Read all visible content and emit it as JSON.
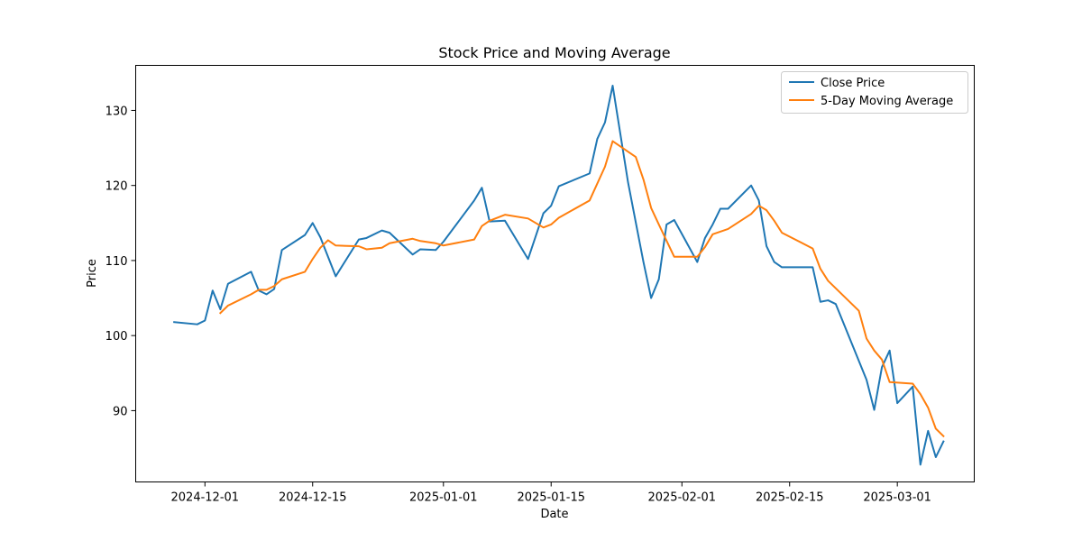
{
  "chart_data": {
    "type": "line",
    "title": "Stock Price and Moving Average",
    "xlabel": "Date",
    "ylabel": "Price",
    "xlim": [
      "2024-11-22",
      "2025-03-11"
    ],
    "ylim": [
      80.5,
      136.0
    ],
    "x_ticks": [
      "2024-12-01",
      "2024-12-15",
      "2025-01-01",
      "2025-01-15",
      "2025-02-01",
      "2025-02-15",
      "2025-03-01"
    ],
    "y_ticks": [
      90,
      100,
      110,
      120,
      130
    ],
    "grid": false,
    "legend_position": "top-right",
    "series": [
      {
        "name": "Close Price",
        "color": "#1f77b4",
        "points": [
          [
            "2024-11-27",
            101.8
          ],
          [
            "2024-11-30",
            101.5
          ],
          [
            "2024-12-01",
            102.0
          ],
          [
            "2024-12-02",
            106.0
          ],
          [
            "2024-12-03",
            103.5
          ],
          [
            "2024-12-04",
            106.9
          ],
          [
            "2024-12-07",
            108.5
          ],
          [
            "2024-12-08",
            106.0
          ],
          [
            "2024-12-09",
            105.5
          ],
          [
            "2024-12-10",
            106.2
          ],
          [
            "2024-12-11",
            111.4
          ],
          [
            "2024-12-14",
            113.4
          ],
          [
            "2024-12-15",
            115.0
          ],
          [
            "2024-12-16",
            113.1
          ],
          [
            "2024-12-18",
            107.9
          ],
          [
            "2024-12-21",
            112.8
          ],
          [
            "2024-12-22",
            113.0
          ],
          [
            "2024-12-24",
            114.0
          ],
          [
            "2024-12-25",
            113.7
          ],
          [
            "2024-12-28",
            110.8
          ],
          [
            "2024-12-29",
            111.5
          ],
          [
            "2024-12-31",
            111.4
          ],
          [
            "2025-01-01",
            112.5
          ],
          [
            "2025-01-05",
            118.0
          ],
          [
            "2025-01-06",
            119.7
          ],
          [
            "2025-01-07",
            115.2
          ],
          [
            "2025-01-09",
            115.3
          ],
          [
            "2025-01-12",
            110.2
          ],
          [
            "2025-01-14",
            116.3
          ],
          [
            "2025-01-15",
            117.3
          ],
          [
            "2025-01-16",
            119.9
          ],
          [
            "2025-01-20",
            121.6
          ],
          [
            "2025-01-21",
            126.2
          ],
          [
            "2025-01-22",
            128.4
          ],
          [
            "2025-01-23",
            133.3
          ],
          [
            "2025-01-25",
            120.4
          ],
          [
            "2025-01-27",
            109.8
          ],
          [
            "2025-01-28",
            105.0
          ],
          [
            "2025-01-29",
            107.5
          ],
          [
            "2025-01-30",
            114.8
          ],
          [
            "2025-01-31",
            115.4
          ],
          [
            "2025-02-03",
            109.8
          ],
          [
            "2025-02-04",
            113.0
          ],
          [
            "2025-02-05",
            114.8
          ],
          [
            "2025-02-06",
            116.9
          ],
          [
            "2025-02-07",
            116.9
          ],
          [
            "2025-02-10",
            120.0
          ],
          [
            "2025-02-11",
            118.0
          ],
          [
            "2025-02-12",
            111.9
          ],
          [
            "2025-02-13",
            109.8
          ],
          [
            "2025-02-14",
            109.1
          ],
          [
            "2025-02-17",
            109.1
          ],
          [
            "2025-02-18",
            109.1
          ],
          [
            "2025-02-19",
            104.5
          ],
          [
            "2025-02-20",
            104.7
          ],
          [
            "2025-02-21",
            104.2
          ],
          [
            "2025-02-25",
            94.1
          ],
          [
            "2025-02-26",
            90.1
          ],
          [
            "2025-02-27",
            95.8
          ],
          [
            "2025-02-28",
            98.0
          ],
          [
            "2025-03-01",
            91.0
          ],
          [
            "2025-03-03",
            93.2
          ],
          [
            "2025-03-04",
            82.8
          ],
          [
            "2025-03-05",
            87.3
          ],
          [
            "2025-03-06",
            83.8
          ],
          [
            "2025-03-07",
            85.9
          ]
        ]
      },
      {
        "name": "5-Day Moving Average",
        "color": "#ff7f0e",
        "points": [
          [
            "2024-12-03",
            103.0
          ],
          [
            "2024-12-04",
            104.0
          ],
          [
            "2024-12-07",
            105.5
          ],
          [
            "2024-12-08",
            106.1
          ],
          [
            "2024-12-09",
            106.1
          ],
          [
            "2024-12-10",
            106.6
          ],
          [
            "2024-12-11",
            107.5
          ],
          [
            "2024-12-14",
            108.5
          ],
          [
            "2024-12-15",
            110.2
          ],
          [
            "2024-12-16",
            111.7
          ],
          [
            "2024-12-17",
            112.7
          ],
          [
            "2024-12-18",
            112.0
          ],
          [
            "2024-12-21",
            111.9
          ],
          [
            "2024-12-22",
            111.5
          ],
          [
            "2024-12-24",
            111.7
          ],
          [
            "2024-12-25",
            112.3
          ],
          [
            "2024-12-28",
            112.9
          ],
          [
            "2024-12-29",
            112.6
          ],
          [
            "2024-12-31",
            112.3
          ],
          [
            "2025-01-01",
            112.0
          ],
          [
            "2025-01-05",
            112.8
          ],
          [
            "2025-01-06",
            114.6
          ],
          [
            "2025-01-07",
            115.3
          ],
          [
            "2025-01-09",
            116.1
          ],
          [
            "2025-01-12",
            115.6
          ],
          [
            "2025-01-14",
            114.4
          ],
          [
            "2025-01-15",
            114.8
          ],
          [
            "2025-01-16",
            115.7
          ],
          [
            "2025-01-20",
            118.0
          ],
          [
            "2025-01-22",
            122.5
          ],
          [
            "2025-01-23",
            125.9
          ],
          [
            "2025-01-26",
            123.8
          ],
          [
            "2025-01-27",
            120.8
          ],
          [
            "2025-01-28",
            117.0
          ],
          [
            "2025-01-29",
            114.8
          ],
          [
            "2025-01-31",
            110.5
          ],
          [
            "2025-02-03",
            110.5
          ],
          [
            "2025-02-04",
            111.8
          ],
          [
            "2025-02-05",
            113.5
          ],
          [
            "2025-02-07",
            114.2
          ],
          [
            "2025-02-10",
            116.2
          ],
          [
            "2025-02-11",
            117.3
          ],
          [
            "2025-02-12",
            116.7
          ],
          [
            "2025-02-13",
            115.3
          ],
          [
            "2025-02-14",
            113.7
          ],
          [
            "2025-02-18",
            111.6
          ],
          [
            "2025-02-19",
            108.9
          ],
          [
            "2025-02-20",
            107.3
          ],
          [
            "2025-02-24",
            103.3
          ],
          [
            "2025-02-25",
            99.6
          ],
          [
            "2025-02-26",
            98.0
          ],
          [
            "2025-02-27",
            96.8
          ],
          [
            "2025-02-28",
            93.8
          ],
          [
            "2025-03-03",
            93.6
          ],
          [
            "2025-03-04",
            92.2
          ],
          [
            "2025-03-05",
            90.4
          ],
          [
            "2025-03-06",
            87.6
          ],
          [
            "2025-03-07",
            86.6
          ]
        ]
      }
    ]
  }
}
